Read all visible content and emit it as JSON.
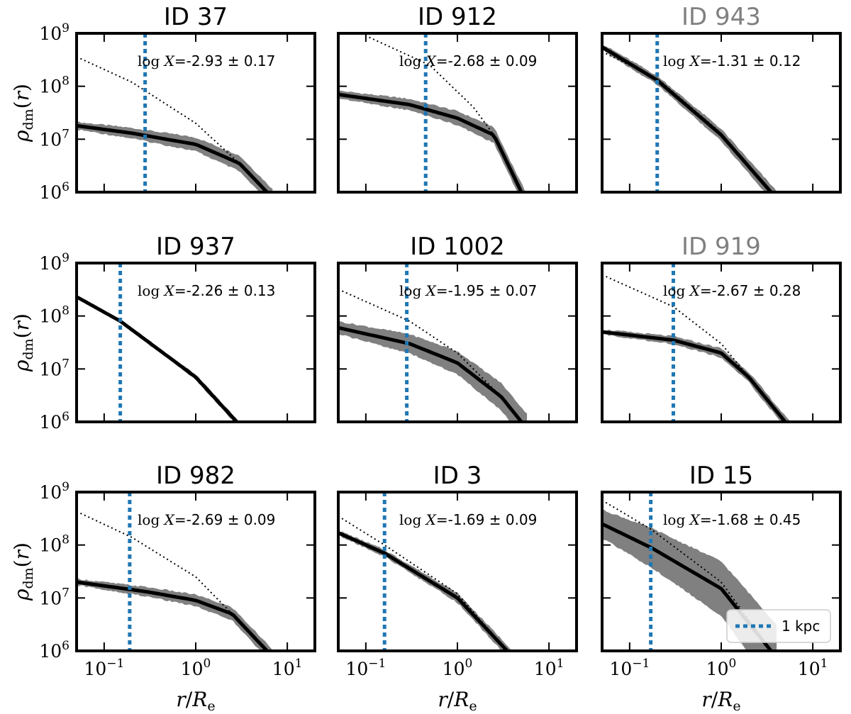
{
  "colors": {
    "title_normal": "#000000",
    "title_muted": "#808080",
    "band": "#808080",
    "median_line": "#000000",
    "model_line": "#000000",
    "kpc_line": "#1f77b4"
  },
  "axes": {
    "ylabel": "ρdm(r)",
    "xlabel": "r/Re",
    "x_range": [
      0.05,
      20
    ],
    "y_range": [
      1000000,
      1000000000
    ],
    "x_ticks": [
      {
        "base": "10",
        "exp": "−1",
        "value": 0.1
      },
      {
        "base": "10",
        "exp": "0",
        "value": 1
      },
      {
        "base": "10",
        "exp": "1",
        "value": 10
      }
    ],
    "y_ticks": [
      {
        "base": "10",
        "exp": "6",
        "value": 1000000
      },
      {
        "base": "10",
        "exp": "7",
        "value": 10000000
      },
      {
        "base": "10",
        "exp": "8",
        "value": 100000000
      },
      {
        "base": "10",
        "exp": "9",
        "value": 1000000000
      }
    ],
    "scale": "log-log"
  },
  "legend": {
    "label": "1 kpc",
    "location": "lower right",
    "panel": "ID 15"
  },
  "chart_data": [
    {
      "type": "line",
      "title": "ID 37",
      "title_muted": false,
      "annotation_prefix": "log",
      "annotation_var": "X",
      "annotation_value": "=-2.93 ± 0.17",
      "kpc_r": 0.28,
      "median": {
        "x": [
          0.05,
          0.2,
          1.0,
          3.0,
          6.0
        ],
        "y": [
          18000000,
          13000000,
          8000000,
          3500000,
          1000000
        ]
      },
      "band_width_dex": 0.12,
      "model": {
        "x": [
          0.05,
          0.2,
          1.0,
          3.0
        ],
        "y": [
          360000000,
          120000000,
          20000000,
          3500000
        ]
      }
    },
    {
      "type": "line",
      "title": "ID 912",
      "title_muted": false,
      "annotation_prefix": "log",
      "annotation_var": "X",
      "annotation_value": "=-2.68 ± 0.09",
      "kpc_r": 0.45,
      "median": {
        "x": [
          0.05,
          0.3,
          1.0,
          2.5,
          5.0
        ],
        "y": [
          70000000,
          45000000,
          25000000,
          12000000,
          1000000
        ]
      },
      "band_width_dex": 0.12,
      "model": {
        "x": [
          0.1,
          0.5,
          1.5,
          2.5
        ],
        "y": [
          900000000,
          250000000,
          40000000,
          12000000
        ]
      }
    },
    {
      "type": "line",
      "title": "ID 943",
      "title_muted": true,
      "annotation_prefix": "log",
      "annotation_var": "X",
      "annotation_value": "=-1.31 ± 0.12",
      "kpc_r": 0.2,
      "median": {
        "x": [
          0.05,
          0.2,
          1.0,
          3.5
        ],
        "y": [
          550000000,
          130000000,
          12000000,
          1000000
        ]
      },
      "band_width_dex": 0.1,
      "model": {
        "x": [
          0.05,
          0.2,
          1.0,
          3.5
        ],
        "y": [
          450000000,
          140000000,
          13000000,
          1000000
        ]
      }
    },
    {
      "type": "line",
      "title": "ID 937",
      "title_muted": false,
      "annotation_prefix": "log",
      "annotation_var": "X",
      "annotation_value": "=-2.26 ± 0.13",
      "kpc_r": 0.15,
      "median": {
        "x": [
          0.05,
          0.15,
          1.0,
          2.8
        ],
        "y": [
          230000000,
          80000000,
          7000000,
          1000000
        ]
      },
      "band_width_dex": 0.04,
      "model": {
        "x": [
          0.05,
          0.15,
          1.0,
          2.8
        ],
        "y": [
          220000000,
          80000000,
          7000000,
          1000000
        ]
      }
    },
    {
      "type": "line",
      "title": "ID 1002",
      "title_muted": false,
      "annotation_prefix": "log",
      "annotation_var": "X",
      "annotation_value": "=-1.95 ± 0.07",
      "kpc_r": 0.28,
      "median": {
        "x": [
          0.05,
          0.3,
          1.0,
          3.0,
          5.0
        ],
        "y": [
          60000000,
          30000000,
          13000000,
          3000000,
          1000000
        ]
      },
      "band_width_dex": 0.2,
      "model": {
        "x": [
          0.05,
          0.3,
          1.0,
          3.0
        ],
        "y": [
          320000000,
          80000000,
          20000000,
          3000000
        ]
      }
    },
    {
      "type": "line",
      "title": "ID 919",
      "title_muted": true,
      "annotation_prefix": "log",
      "annotation_var": "X",
      "annotation_value": "=-2.67 ± 0.28",
      "kpc_r": 0.3,
      "median": {
        "x": [
          0.05,
          0.3,
          1.0,
          2.0,
          5.0
        ],
        "y": [
          50000000,
          35000000,
          20000000,
          7000000,
          1000000
        ]
      },
      "band_width_dex": 0.08,
      "model": {
        "x": [
          0.05,
          0.3,
          1.0,
          2.0
        ],
        "y": [
          600000000,
          150000000,
          30000000,
          7000000
        ]
      }
    },
    {
      "type": "line",
      "title": "ID 982",
      "title_muted": false,
      "annotation_prefix": "log",
      "annotation_var": "X",
      "annotation_value": "=-2.69 ± 0.09",
      "kpc_r": 0.19,
      "median": {
        "x": [
          0.05,
          0.3,
          1.0,
          2.5,
          6.0
        ],
        "y": [
          20000000,
          13000000,
          9000000,
          5000000,
          1000000
        ]
      },
      "band_width_dex": 0.1,
      "model": {
        "x": [
          0.05,
          0.2,
          1.0,
          2.5
        ],
        "y": [
          430000000,
          140000000,
          25000000,
          5000000
        ]
      }
    },
    {
      "type": "line",
      "title": "ID 3",
      "title_muted": false,
      "annotation_prefix": "log",
      "annotation_var": "X",
      "annotation_value": "=-1.69 ± 0.09",
      "kpc_r": 0.16,
      "median": {
        "x": [
          0.05,
          0.16,
          1.0,
          3.5
        ],
        "y": [
          170000000,
          70000000,
          10000000,
          1000000
        ]
      },
      "band_width_dex": 0.08,
      "model": {
        "x": [
          0.05,
          0.16,
          1.0,
          3.5
        ],
        "y": [
          350000000,
          100000000,
          12000000,
          1000000
        ]
      }
    },
    {
      "type": "line",
      "title": "ID 15",
      "title_muted": false,
      "annotation_prefix": "log",
      "annotation_var": "X",
      "annotation_value": "=-1.68 ± 0.45",
      "kpc_r": 0.17,
      "median": {
        "x": [
          0.05,
          0.17,
          1.0,
          3.5
        ],
        "y": [
          250000000,
          90000000,
          15000000,
          1000000
        ]
      },
      "band_width_dex": 0.45,
      "model": {
        "x": [
          0.05,
          0.17,
          1.0,
          3.5
        ],
        "y": [
          700000000,
          200000000,
          20000000,
          1000000
        ]
      }
    }
  ]
}
